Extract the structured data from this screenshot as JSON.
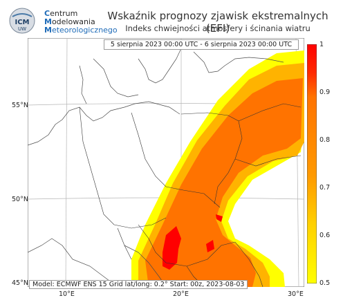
{
  "brand": {
    "line1_cap": "C",
    "line1_rest": "entrum",
    "line2_cap": "M",
    "line2_rest": "odelowania",
    "line3_cap": "M",
    "line3_rest": "eteorologicznego",
    "logo_text": "ICM UW"
  },
  "header": {
    "title": "Wskaźnik prognozy zjawisk ekstremalnych (EFI)",
    "subtitle": "Indeks chwiejności atmosfery i ścinania wiatru",
    "date_range": "5 sierpnia 2023 00:00 UTC - 6 sierpnia 2023 00:00 UTC"
  },
  "map": {
    "lat_labels": [
      "55°N",
      "50°N",
      "45°N"
    ],
    "lon_labels": [
      "10°E",
      "20°E",
      "30°E"
    ],
    "footer": "Model: ECMWF  ENS 15  Grid lat/long: 0.2°  Start: 00z, 2023-08-03"
  },
  "colorbar": {
    "ticks": [
      "1",
      "0.9",
      "0.8",
      "0.7",
      "0.6",
      "0.5"
    ],
    "colors": [
      "#ff0000",
      "#ff7300",
      "#ffb300",
      "#ffff00"
    ]
  },
  "colors": {
    "accent": "#1e6bb8",
    "grid": "#aaaaaa",
    "coast": "#555555"
  }
}
